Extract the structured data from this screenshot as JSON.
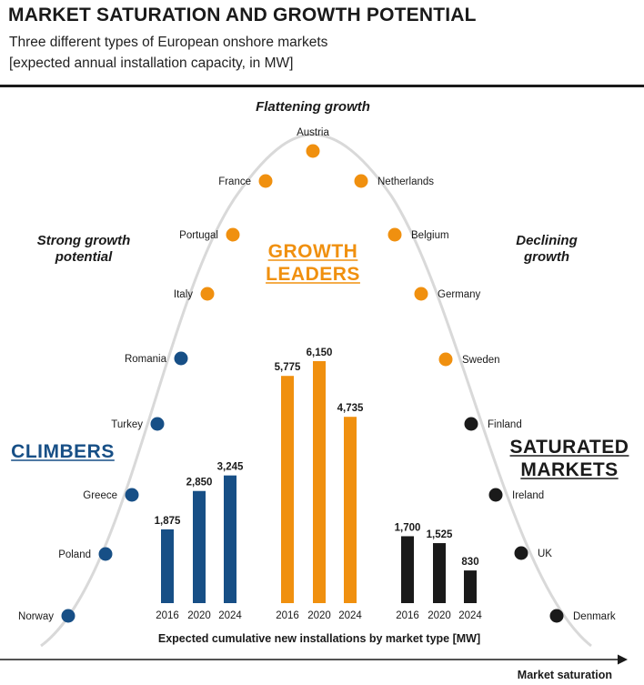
{
  "header": {
    "title": "MARKET SATURATION  AND GROWTH POTENTIAL",
    "subtitle_line1": "Three different types of European onshore markets",
    "subtitle_line2": "[expected annual installation capacity, in MW]"
  },
  "colors": {
    "climbers": "#174f86",
    "growth_leaders": "#f0900f",
    "saturated": "#1a1a1a",
    "curve": "#d9d9d9"
  },
  "chart_data": {
    "type": "bar",
    "title": "Expected cumulative new installations by market type [MW]",
    "xlabel": "Market saturation",
    "phase_labels": {
      "left": [
        "Strong growth",
        "potential"
      ],
      "top": "Flattening growth",
      "right": [
        "Declining",
        "growth"
      ]
    },
    "curve_countries": [
      {
        "name": "Norway",
        "group": "climbers"
      },
      {
        "name": "Poland",
        "group": "climbers"
      },
      {
        "name": "Greece",
        "group": "climbers"
      },
      {
        "name": "Turkey",
        "group": "climbers"
      },
      {
        "name": "Romania",
        "group": "climbers"
      },
      {
        "name": "Italy",
        "group": "growth_leaders"
      },
      {
        "name": "Portugal",
        "group": "growth_leaders"
      },
      {
        "name": "France",
        "group": "growth_leaders"
      },
      {
        "name": "Austria",
        "group": "growth_leaders"
      },
      {
        "name": "Netherlands",
        "group": "growth_leaders"
      },
      {
        "name": "Belgium",
        "group": "growth_leaders"
      },
      {
        "name": "Germany",
        "group": "growth_leaders"
      },
      {
        "name": "Sweden",
        "group": "growth_leaders"
      },
      {
        "name": "Finland",
        "group": "saturated"
      },
      {
        "name": "Ireland",
        "group": "saturated"
      },
      {
        "name": "UK",
        "group": "saturated"
      },
      {
        "name": "Denmark",
        "group": "saturated"
      }
    ],
    "categories": [
      "2016",
      "2020",
      "2024"
    ],
    "series": [
      {
        "key": "climbers",
        "name": [
          "CLIMBERS"
        ],
        "values": [
          1875,
          2850,
          3245
        ],
        "labels": [
          "1,875",
          "2,850",
          "3,245"
        ]
      },
      {
        "key": "growth_leaders",
        "name": [
          "GROWTH",
          "LEADERS"
        ],
        "values": [
          5775,
          6150,
          4735
        ],
        "labels": [
          "5,775",
          "6,150",
          "4,735"
        ]
      },
      {
        "key": "saturated",
        "name": [
          "SATURATED",
          "MARKETS"
        ],
        "values": [
          1700,
          1525,
          830
        ],
        "labels": [
          "1,700",
          "1,525",
          "830"
        ]
      }
    ],
    "ylim": [
      0,
      6150
    ]
  }
}
